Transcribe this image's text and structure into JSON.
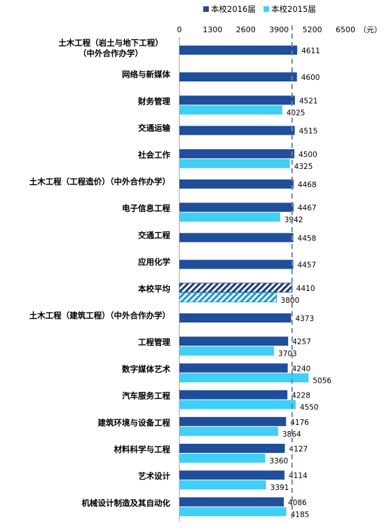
{
  "chart_data": {
    "type": "bar",
    "orientation": "horizontal",
    "unit_label": "（元）",
    "xlim": [
      0,
      6500
    ],
    "xticks": [
      "0",
      "1300",
      "2600",
      "3900",
      "5200",
      "6500"
    ],
    "reference_line": {
      "label": "本校平均",
      "value": 4410,
      "style": "dashed"
    },
    "categories": [
      [
        "土木工程（岩土与地下工程）",
        "（中外合作办学）"
      ],
      [
        "网络与新媒体"
      ],
      [
        "财务管理"
      ],
      [
        "交通运输"
      ],
      [
        "社会工作"
      ],
      [
        "土木工程（工程造价）（中外合作办学）"
      ],
      [
        "电子信息工程"
      ],
      [
        "交通工程"
      ],
      [
        "应用化学"
      ],
      [
        "本校平均"
      ],
      [
        "土木工程（建筑工程）（中外合作办学）"
      ],
      [
        "工程管理"
      ],
      [
        "数字媒体艺术"
      ],
      [
        "汽车服务工程"
      ],
      [
        "建筑环境与设备工程"
      ],
      [
        "材料科学与工程"
      ],
      [
        "艺术设计"
      ],
      [
        "机械设计制造及其自动化"
      ]
    ],
    "highlight_category_index": 9,
    "series": [
      {
        "name": "本校2016届",
        "color": "#1F4E9A",
        "values": [
          4611,
          4600,
          4521,
          4515,
          4500,
          4468,
          4467,
          4458,
          4457,
          4410,
          4373,
          4257,
          4240,
          4228,
          4176,
          4127,
          4114,
          4086
        ]
      },
      {
        "name": "本校2015届",
        "color": "#40CFF5",
        "values": [
          null,
          null,
          4025,
          null,
          4325,
          null,
          3942,
          null,
          null,
          3800,
          null,
          3703,
          5056,
          4550,
          3864,
          3360,
          3391,
          4185
        ]
      }
    ],
    "legend_position": "top"
  }
}
